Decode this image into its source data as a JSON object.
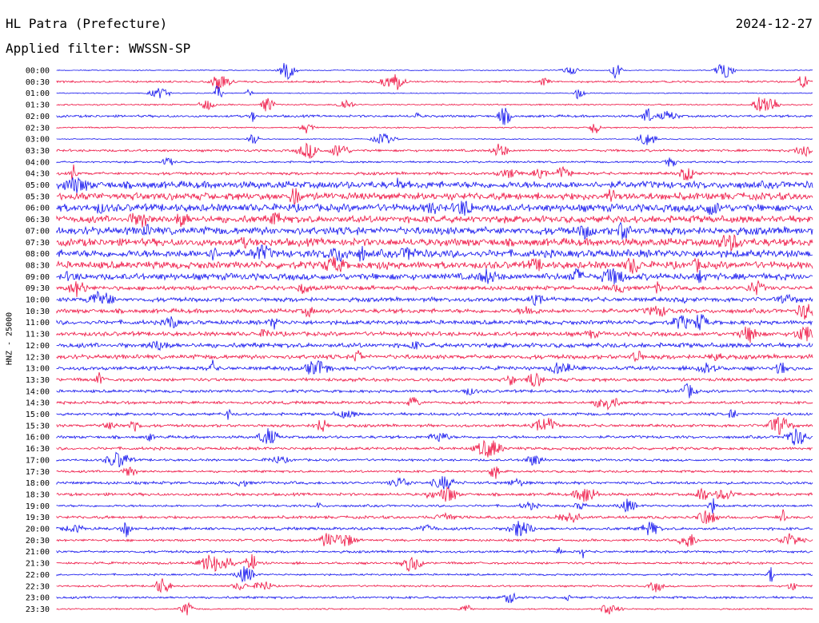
{
  "header": {
    "station": "HL Patra (Prefecture)",
    "date": "2024-12-27",
    "filter_prefix": "Applied filter:",
    "filter_name": "WWSSN-SP"
  },
  "channel_label": "HNZ - 25000",
  "colors": {
    "blue": "#1010ee",
    "red": "#ee1040"
  },
  "chart_data": {
    "type": "line",
    "title": "HL Patra (Prefecture)",
    "xlabel": "",
    "ylabel": "HNZ - 25000",
    "grid": false,
    "series_colors_alternate": [
      "blue",
      "red"
    ],
    "rows": [
      {
        "label": "00:00",
        "level": 0.1
      },
      {
        "label": "00:30",
        "level": 0.2
      },
      {
        "label": "01:00",
        "level": 0.1
      },
      {
        "label": "01:30",
        "level": 0.15
      },
      {
        "label": "02:00",
        "level": 0.25
      },
      {
        "label": "02:30",
        "level": 0.15
      },
      {
        "label": "03:00",
        "level": 0.1
      },
      {
        "label": "03:30",
        "level": 0.25
      },
      {
        "label": "04:00",
        "level": 0.2
      },
      {
        "label": "04:30",
        "level": 0.3
      },
      {
        "label": "05:00",
        "level": 0.75
      },
      {
        "label": "05:30",
        "level": 0.75
      },
      {
        "label": "06:00",
        "level": 0.8
      },
      {
        "label": "06:30",
        "level": 0.75
      },
      {
        "label": "07:00",
        "level": 0.8
      },
      {
        "label": "07:30",
        "level": 0.8
      },
      {
        "label": "08:00",
        "level": 0.8
      },
      {
        "label": "08:30",
        "level": 0.75
      },
      {
        "label": "09:00",
        "level": 0.7
      },
      {
        "label": "09:30",
        "level": 0.45
      },
      {
        "label": "10:00",
        "level": 0.45
      },
      {
        "label": "10:30",
        "level": 0.45
      },
      {
        "label": "11:00",
        "level": 0.45
      },
      {
        "label": "11:30",
        "level": 0.45
      },
      {
        "label": "12:00",
        "level": 0.5
      },
      {
        "label": "12:30",
        "level": 0.45
      },
      {
        "label": "13:00",
        "level": 0.4
      },
      {
        "label": "13:30",
        "level": 0.35
      },
      {
        "label": "14:00",
        "level": 0.3
      },
      {
        "label": "14:30",
        "level": 0.3
      },
      {
        "label": "15:00",
        "level": 0.3
      },
      {
        "label": "15:30",
        "level": 0.3
      },
      {
        "label": "16:00",
        "level": 0.3
      },
      {
        "label": "16:30",
        "level": 0.3
      },
      {
        "label": "17:00",
        "level": 0.25
      },
      {
        "label": "17:30",
        "level": 0.25
      },
      {
        "label": "18:00",
        "level": 0.3
      },
      {
        "label": "18:30",
        "level": 0.3
      },
      {
        "label": "19:00",
        "level": 0.25
      },
      {
        "label": "19:30",
        "level": 0.3
      },
      {
        "label": "20:00",
        "level": 0.3
      },
      {
        "label": "20:30",
        "level": 0.25
      },
      {
        "label": "21:00",
        "level": 0.25
      },
      {
        "label": "21:30",
        "level": 0.25
      },
      {
        "label": "22:00",
        "level": 0.2
      },
      {
        "label": "22:30",
        "level": 0.2
      },
      {
        "label": "23:00",
        "level": 0.25
      },
      {
        "label": "23:30",
        "level": 0.15
      }
    ]
  }
}
